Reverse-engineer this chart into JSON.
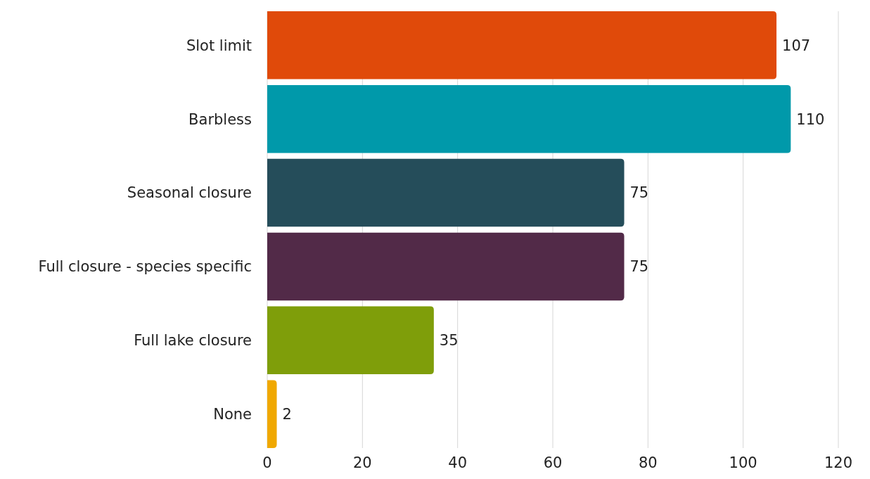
{
  "chart_data": {
    "type": "bar",
    "orientation": "horizontal",
    "categories": [
      "Slot limit",
      "Barbless",
      "Seasonal closure",
      "Full closure - species specific",
      "Full lake closure",
      "None"
    ],
    "values": [
      107,
      110,
      75,
      75,
      35,
      2
    ],
    "colors": [
      "#e04a0a",
      "#0099aa",
      "#254d5a",
      "#522a48",
      "#7f9e0a",
      "#f0a800"
    ],
    "xlim": [
      0,
      120
    ],
    "xticks": [
      0,
      20,
      40,
      60,
      80,
      100,
      120
    ],
    "grid": "x",
    "data_labels": true
  }
}
